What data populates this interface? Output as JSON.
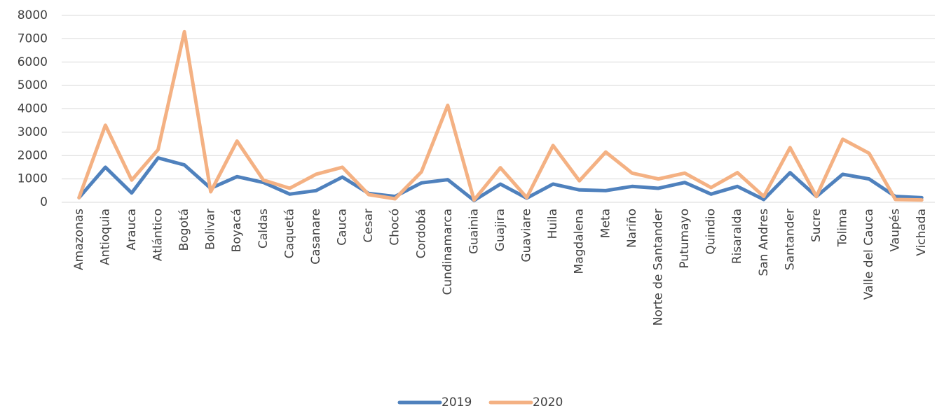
{
  "chart_data": {
    "type": "line",
    "categories": [
      "Amazonas",
      "Antioquia",
      "Arauca",
      "Atlántico",
      "Bogotá",
      "Bolivar",
      "Boyacá",
      "Caldas",
      "Caquetá",
      "Casanare",
      "Cauca",
      "Cesar",
      "Chocó",
      "Cordobá",
      "Cundinamarca",
      "Guainia",
      "Guajira",
      "Guaviare",
      "Huila",
      "Magdalena",
      "Meta",
      "Nariño",
      "Norte de Santander",
      "Putumayo",
      "Quindio",
      "Risaralda",
      "San Andres",
      "Santander",
      "Sucre",
      "Tolima",
      "Valle del Cauca",
      "Vaupés",
      "Vichada"
    ],
    "series": [
      {
        "name": "2019",
        "color": "#4f81bd",
        "values": [
          200,
          1500,
          400,
          1900,
          1600,
          600,
          1100,
          850,
          350,
          500,
          1080,
          380,
          250,
          830,
          970,
          80,
          780,
          180,
          780,
          530,
          500,
          680,
          600,
          850,
          350,
          680,
          120,
          1270,
          250,
          1200,
          1000,
          250,
          200
        ]
      },
      {
        "name": "2020",
        "color": "#f4b183",
        "values": [
          200,
          3300,
          950,
          2250,
          7300,
          450,
          2620,
          950,
          600,
          1200,
          1500,
          330,
          150,
          1300,
          4150,
          100,
          1480,
          200,
          2430,
          920,
          2150,
          1250,
          1000,
          1250,
          630,
          1270,
          250,
          2340,
          250,
          2700,
          2100,
          120,
          100
        ]
      }
    ],
    "ylim": [
      0,
      8000
    ],
    "yticks": [
      0,
      1000,
      2000,
      3000,
      4000,
      5000,
      6000,
      7000,
      8000
    ],
    "grid": true,
    "legend": "bottom"
  }
}
